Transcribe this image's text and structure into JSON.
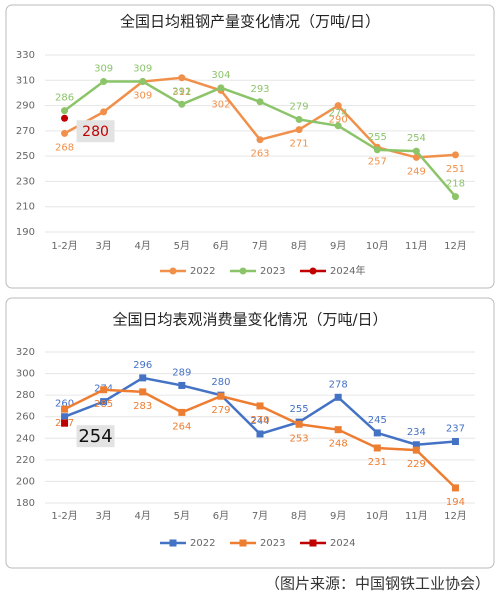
{
  "chart_data": [
    {
      "type": "line",
      "title": "全国日均粗钢产量变化情况（万吨/日）",
      "categories": [
        "1-2月",
        "3月",
        "4月",
        "5月",
        "6月",
        "7月",
        "8月",
        "9月",
        "10月",
        "11月",
        "12月"
      ],
      "series": [
        {
          "name": "2022",
          "color": "#f0904a",
          "values": [
            268,
            285,
            309,
            312,
            302,
            263,
            271,
            290,
            257,
            249,
            251
          ]
        },
        {
          "name": "2023",
          "color": "#8cc46a",
          "values": [
            286,
            309,
            309,
            291,
            304,
            293,
            279,
            274,
            255,
            254,
            218
          ]
        },
        {
          "name": "2024年",
          "color": "#c00000",
          "values": [
            280,
            null,
            null,
            null,
            null,
            null,
            null,
            null,
            null,
            null,
            null
          ]
        }
      ],
      "ylim": [
        190,
        330
      ],
      "yticks": [
        190,
        210,
        230,
        250,
        270,
        290,
        310,
        330
      ],
      "grid": true,
      "marker": "circle",
      "legend": "bottom"
    },
    {
      "type": "line",
      "title": "全国日均表观消费量变化情况（万吨/日）",
      "categories": [
        "1-2月",
        "3月",
        "4月",
        "5月",
        "6月",
        "7月",
        "8月",
        "9月",
        "10月",
        "11月",
        "12月"
      ],
      "series": [
        {
          "name": "2022",
          "color": "#4472c4",
          "values": [
            260,
            274,
            296,
            289,
            280,
            244,
            255,
            278,
            245,
            234,
            237
          ]
        },
        {
          "name": "2023",
          "color": "#ed7d31",
          "values": [
            267,
            285,
            283,
            264,
            279,
            270,
            253,
            248,
            231,
            229,
            194
          ]
        },
        {
          "name": "2024",
          "color": "#c00000",
          "values": [
            254,
            null,
            null,
            null,
            null,
            null,
            null,
            null,
            null,
            null,
            null
          ]
        }
      ],
      "ylim": [
        180,
        320
      ],
      "yticks": [
        180,
        200,
        220,
        240,
        260,
        280,
        300,
        320
      ],
      "grid": true,
      "marker": "square",
      "legend": "bottom"
    }
  ],
  "caption": "（图片来源：中国钢铁工业协会）"
}
